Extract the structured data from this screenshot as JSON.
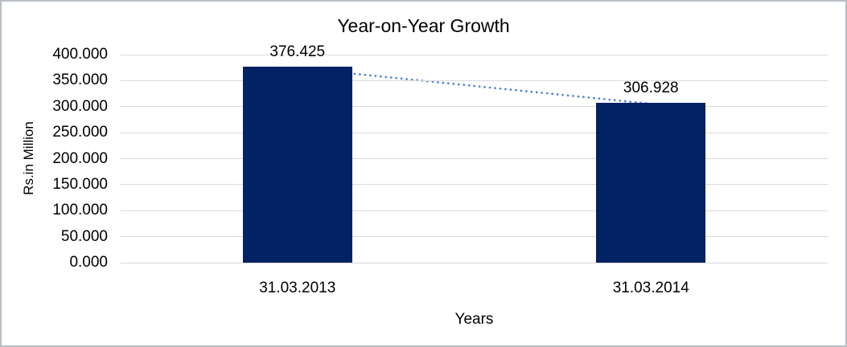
{
  "chart_data": {
    "type": "bar",
    "title": "Year-on-Year Growth",
    "categories": [
      "31.03.2013",
      "31.03.2014"
    ],
    "values": [
      376.425,
      306.928
    ],
    "data_labels": [
      "376.425",
      "306.928"
    ],
    "xlabel": "Years",
    "ylabel": "Rs.in Million",
    "ylim": [
      0,
      400
    ],
    "ytick_step": 50,
    "ytick_labels": [
      "0.000",
      "50.000",
      "100.000",
      "150.000",
      "200.000",
      "250.000",
      "300.000",
      "350.000",
      "400.000"
    ],
    "grid": true,
    "legend_position": "none",
    "trendline": {
      "style": "dotted",
      "color": "#4F81D0",
      "connects": [
        "31.03.2013",
        "31.03.2014"
      ]
    },
    "colors": {
      "bar_fill": "#032264",
      "gridline": "#D9D9D9",
      "text": "#000000",
      "frame_border": "#B9BEC6",
      "background": "#FFFFFF"
    }
  }
}
